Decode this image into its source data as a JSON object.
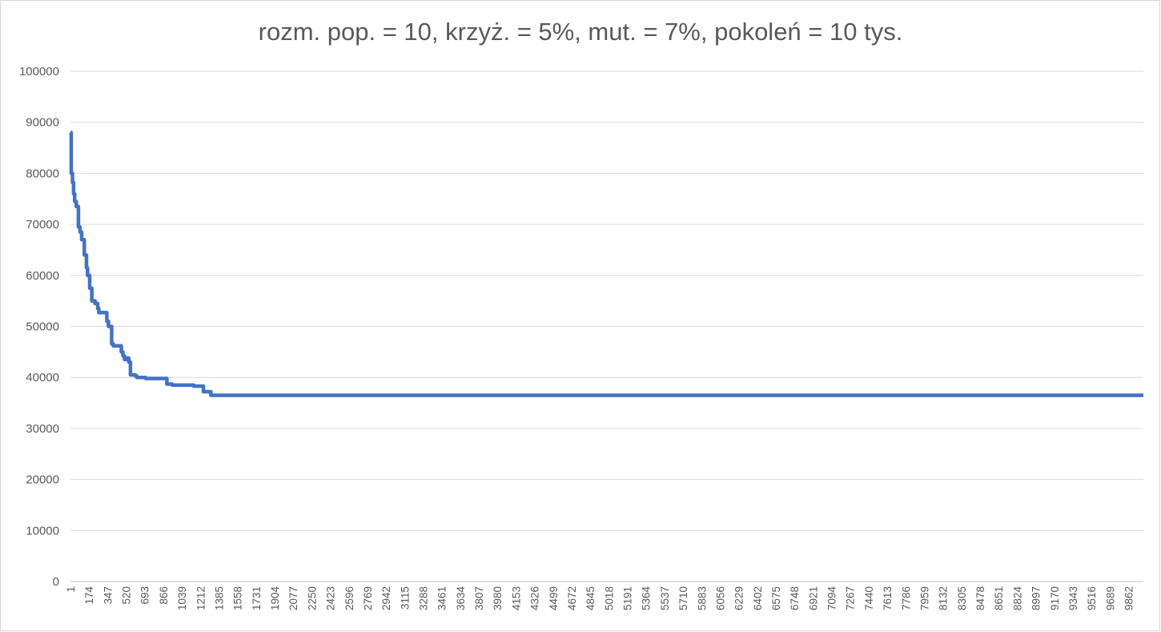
{
  "chart_data": {
    "type": "line",
    "title": "rozm. pop. = 10, krzyż. =  5%, mut. = 7%, pokoleń = 10 tys.",
    "xlabel": "",
    "ylabel": "",
    "ylim": [
      0,
      100000
    ],
    "y_ticks": [
      "0",
      "10000",
      "20000",
      "30000",
      "40000",
      "50000",
      "60000",
      "70000",
      "80000",
      "90000",
      "100000"
    ],
    "x_range": [
      1,
      10000
    ],
    "x_tick_labels": [
      "1",
      "174",
      "347",
      "520",
      "693",
      "866",
      "1039",
      "1212",
      "1385",
      "1558",
      "1731",
      "1904",
      "2077",
      "2250",
      "2423",
      "2596",
      "2769",
      "2942",
      "3115",
      "3288",
      "3461",
      "3634",
      "3807",
      "3980",
      "4153",
      "4326",
      "4499",
      "4672",
      "4845",
      "5018",
      "5191",
      "5364",
      "5537",
      "5710",
      "5883",
      "6056",
      "6229",
      "6402",
      "6575",
      "6748",
      "6921",
      "7094",
      "7267",
      "7440",
      "7613",
      "7786",
      "7959",
      "8132",
      "8305",
      "8478",
      "8651",
      "8824",
      "8997",
      "9170",
      "9343",
      "9516",
      "9689",
      "9862"
    ],
    "grid": true,
    "legend": "none",
    "series": [
      {
        "color": "#4472C4",
        "x": [
          1,
          8,
          8,
          20,
          20,
          30,
          30,
          40,
          40,
          55,
          55,
          75,
          75,
          90,
          90,
          105,
          105,
          130,
          130,
          150,
          150,
          160,
          160,
          180,
          180,
          200,
          200,
          230,
          230,
          255,
          255,
          265,
          265,
          340,
          340,
          355,
          355,
          385,
          385,
          400,
          400,
          475,
          475,
          490,
          490,
          505,
          505,
          520,
          520,
          545,
          545,
          560,
          560,
          605,
          605,
          620,
          620,
          700,
          700,
          900,
          900,
          950,
          950,
          1150,
          1150,
          1240,
          1240,
          1310,
          1310,
          10000
        ],
        "y": [
          88000,
          88000,
          80000,
          80000,
          78200,
          78200,
          76000,
          76000,
          74500,
          74500,
          73500,
          73500,
          69500,
          69500,
          68500,
          68500,
          67000,
          67000,
          64000,
          64000,
          61500,
          61500,
          60000,
          60000,
          57500,
          57500,
          55000,
          55000,
          54500,
          54500,
          53500,
          53500,
          52700,
          52700,
          51000,
          51000,
          50000,
          50000,
          46600,
          46600,
          46200,
          46200,
          45000,
          45000,
          44200,
          44200,
          43500,
          43500,
          43800,
          43800,
          43000,
          43000,
          40500,
          40500,
          40300,
          40300,
          40000,
          40000,
          39800,
          39800,
          38700,
          38700,
          38500,
          38500,
          38300,
          38300,
          37200,
          37200,
          36500,
          36500
        ]
      }
    ]
  }
}
